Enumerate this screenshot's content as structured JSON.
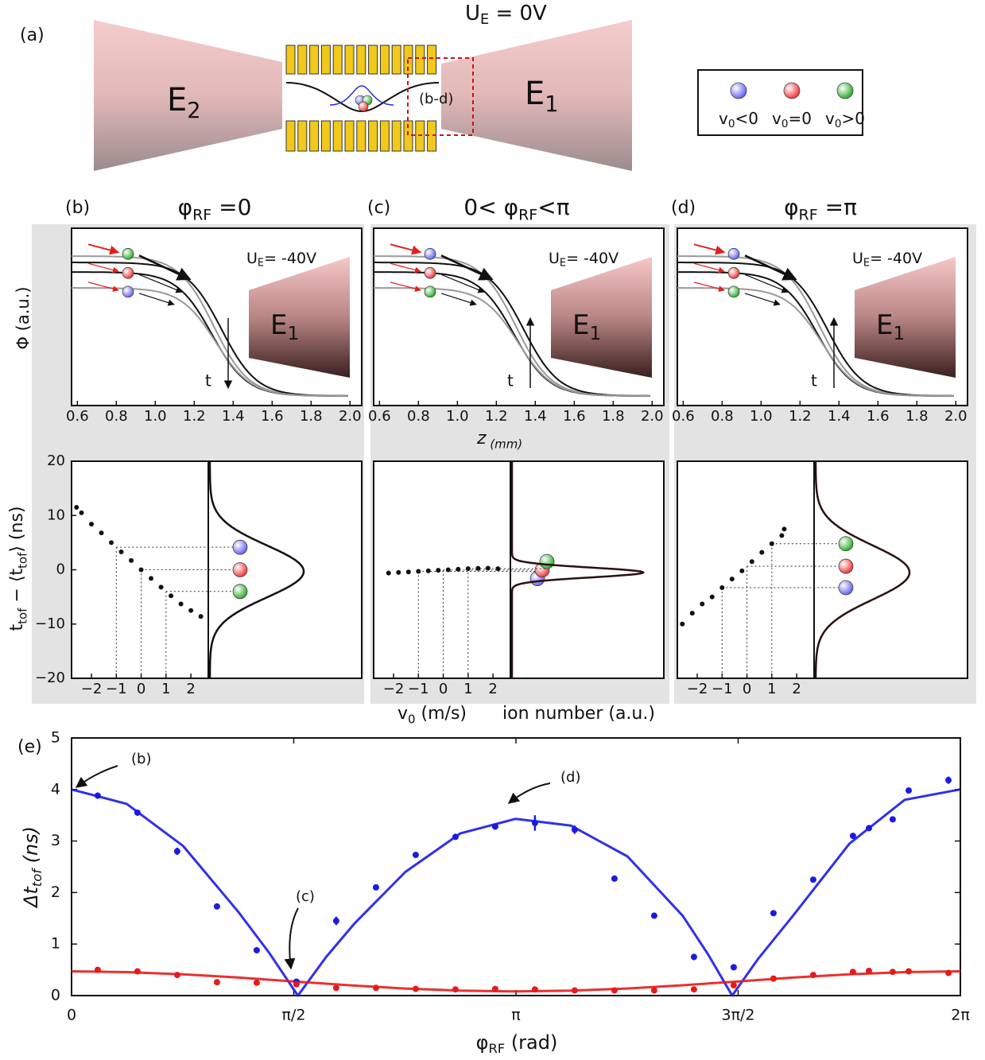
{
  "panel_a": {
    "label": "(a)",
    "voltage": [
      "U",
      "E",
      " = 0V"
    ],
    "electrode_left": [
      "E",
      "2"
    ],
    "electrode_right": [
      "E",
      "1"
    ],
    "zoom_label": "(b-d)",
    "legend": [
      [
        "v",
        "0",
        "<0"
      ],
      [
        "v",
        "0",
        "=0"
      ],
      [
        "v",
        "0",
        ">0"
      ]
    ]
  },
  "shared_labels": {
    "potential_ylabel": "Φ  (a.u.)",
    "z_xlabel": [
      "z",
      "  (mm)"
    ],
    "tof_ylabel": [
      "t",
      "tof",
      " − ⟨t",
      "tof",
      "⟩  (ns)"
    ],
    "v0_xlabel": [
      "v",
      "0",
      "  (m/s)"
    ],
    "ion_xlabel": "ion number (a.u.)"
  },
  "chart_data": [
    {
      "type": "scatter",
      "label": "(b)",
      "title": [
        "φ",
        "RF",
        " =0"
      ],
      "potential": {
        "annotation": [
          "U",
          "E",
          "= -40V"
        ],
        "electrode": [
          "E",
          "1"
        ],
        "time_label": "t",
        "xlim": [
          0.57,
          2.06
        ],
        "xticks": [
          0.6,
          0.8,
          {
            "value": 1,
            "label": "1.0"
          },
          1.2,
          1.4,
          1.6,
          1.8,
          {
            "value": 2,
            "label": "2.0"
          }
        ]
      },
      "x": [
        -2.6,
        -2.4,
        -2.0,
        -1.6,
        -1.2,
        -0.8,
        -0.4,
        0,
        0.4,
        0.8,
        1.2,
        1.6,
        2.0,
        2.4
      ],
      "values": [
        11.5,
        10.5,
        8.4,
        6.8,
        5.0,
        3.3,
        1.7,
        0,
        -1.6,
        -3.2,
        -4.8,
        -6.3,
        -7.5,
        -8.6
      ],
      "xlim": [
        -2.8,
        2.7
      ],
      "ylim": [
        -20,
        20
      ],
      "xticks": [
        {
          "value": -2,
          "label": "−2"
        },
        {
          "value": -1,
          "label": "−1"
        },
        0,
        1,
        2
      ],
      "yticks": [
        {
          "value": -20,
          "label": "−20"
        },
        {
          "value": -10,
          "label": "−10"
        },
        0,
        10,
        20
      ],
      "color": "#111111"
    },
    {
      "type": "scatter",
      "label": "(c)",
      "title": [
        "0< φ",
        "RF",
        "<π"
      ],
      "potential": {
        "annotation": [
          "U",
          "E",
          "= -40V"
        ],
        "electrode": [
          "E",
          "1"
        ],
        "time_label": "t",
        "xlim": [
          0.57,
          2.06
        ],
        "xticks": [
          0.6,
          0.8,
          {
            "value": 1,
            "label": "1.0"
          },
          1.2,
          1.4,
          1.6,
          1.8,
          {
            "value": 2,
            "label": "2.0"
          }
        ]
      },
      "x": [
        -2.2,
        -1.8,
        -1.4,
        -1.0,
        -0.6,
        -0.2,
        0.2,
        0.6,
        1.0,
        1.4,
        1.8,
        2.2
      ],
      "values": [
        -0.6,
        -0.5,
        -0.4,
        -0.3,
        -0.2,
        -0.1,
        0,
        0.1,
        0.2,
        0.25,
        0.3,
        0.2
      ],
      "xlim": [
        -2.8,
        2.7
      ],
      "ylim": [
        -20,
        20
      ],
      "xticks": [
        {
          "value": -2,
          "label": "−2"
        },
        {
          "value": -1,
          "label": "−1"
        },
        0,
        1,
        2
      ],
      "color": "#111111"
    },
    {
      "type": "scatter",
      "label": "(d)",
      "title": [
        "φ",
        "RF",
        " =π"
      ],
      "potential": {
        "annotation": [
          "U",
          "E",
          "= -40V"
        ],
        "electrode": [
          "E",
          "1"
        ],
        "time_label": "t",
        "xlim": [
          0.57,
          2.06
        ],
        "xticks": [
          0.6,
          0.8,
          {
            "value": 1,
            "label": "1.0"
          },
          1.2,
          1.4,
          1.6,
          1.8,
          {
            "value": 2,
            "label": "2.0"
          }
        ]
      },
      "x": [
        -2.6,
        -2.2,
        -1.8,
        -1.4,
        -1.0,
        -0.6,
        -0.2,
        0.2,
        0.6,
        1.0,
        1.4,
        1.5
      ],
      "values": [
        -10,
        -8,
        -6.3,
        -5,
        -3.3,
        -1.7,
        -0.2,
        1.5,
        3.2,
        4.8,
        6.3,
        7.5
      ],
      "xlim": [
        -2.8,
        2.7
      ],
      "ylim": [
        -20,
        20
      ],
      "xticks": [
        {
          "value": -2,
          "label": "−2"
        },
        {
          "value": -1,
          "label": "−1"
        },
        0,
        1,
        2
      ],
      "color": "#111111"
    },
    {
      "type": "line",
      "label": "(e)",
      "xlim": [
        0,
        6.2832
      ],
      "ylim": [
        0,
        5
      ],
      "xticks": [
        0,
        {
          "value": 1.5708,
          "label": "π/2"
        },
        {
          "value": 3.1416,
          "label": "π"
        },
        {
          "value": 4.7124,
          "label": "3π/2"
        },
        {
          "value": 6.2832,
          "label": "2π"
        }
      ],
      "yticks": [
        0,
        1,
        2,
        3,
        4,
        5
      ],
      "xlabel": [
        "φ",
        "RF",
        "  (rad)"
      ],
      "ylabel": [
        "Δt",
        "tof",
        "  (ns)"
      ],
      "annotations": [
        "(b)",
        "(c)",
        "(d)"
      ],
      "series": [
        {
          "color": "#1a1ae6",
          "x": [
            0.185,
            0.466,
            0.747,
            1.028,
            1.309,
            1.59,
            1.871,
            2.152,
            2.433,
            2.714,
            2.995,
            3.276,
            3.557,
            3.838,
            4.119,
            4.4,
            4.681,
            4.962,
            5.243,
            5.524,
            5.637,
            5.805,
            5.918,
            6.199
          ],
          "values": [
            3.88,
            3.55,
            2.8,
            1.73,
            0.88,
            0.27,
            1.45,
            2.1,
            2.73,
            3.08,
            3.28,
            3.35,
            3.22,
            2.27,
            1.55,
            0.75,
            0.55,
            1.6,
            2.25,
            3.1,
            3.25,
            3.42,
            3.98,
            4.18
          ],
          "errors": [
            0.06,
            0.04,
            0.07,
            0.04,
            0.04,
            0.04,
            0.08,
            0.05,
            0.04,
            0.04,
            0.06,
            0.15,
            0.08,
            0.04,
            0.04,
            0.06,
            0.04,
            0.04,
            0.05,
            0.04,
            0.04,
            0.04,
            0.04,
            0.07
          ]
        },
        {
          "color": "#e61a1a",
          "x": [
            0.185,
            0.466,
            0.747,
            1.028,
            1.309,
            1.59,
            1.871,
            2.152,
            2.433,
            2.714,
            2.995,
            3.276,
            3.557,
            3.838,
            4.119,
            4.4,
            4.681,
            4.962,
            5.243,
            5.524,
            5.637,
            5.805,
            5.918,
            6.199
          ],
          "values": [
            0.5,
            0.47,
            0.4,
            0.26,
            0.25,
            0.22,
            0.15,
            0.15,
            0.13,
            0.12,
            0.13,
            0.12,
            0.1,
            0.1,
            0.1,
            0.12,
            0.2,
            0.33,
            0.4,
            0.46,
            0.48,
            0.46,
            0.47,
            0.44
          ]
        }
      ],
      "fits": [
        {
          "color": "#1a1ae6",
          "x": [
            0,
            0.39,
            0.79,
            1.18,
            1.4,
            1.6,
            1.8,
            2.0,
            2.36,
            2.75,
            3.14,
            3.53,
            3.93,
            4.32,
            4.5,
            4.67,
            4.85,
            5.1,
            5.5,
            5.89,
            6.28
          ],
          "values": [
            4.0,
            3.72,
            2.9,
            1.62,
            0.82,
            0,
            0.75,
            1.4,
            2.4,
            3.15,
            3.43,
            3.3,
            2.7,
            1.55,
            0.8,
            0,
            0.7,
            1.55,
            2.95,
            3.8,
            4.0
          ]
        },
        {
          "color": "#e61a1a",
          "x": [
            0,
            0.393,
            0.785,
            1.178,
            1.571,
            1.963,
            2.356,
            2.749,
            3.142,
            3.534,
            3.927,
            4.32,
            4.712,
            5.105,
            5.498,
            5.89,
            6.283
          ],
          "values": [
            0.47,
            0.455,
            0.413,
            0.35,
            0.275,
            0.2,
            0.137,
            0.095,
            0.08,
            0.095,
            0.137,
            0.2,
            0.275,
            0.35,
            0.413,
            0.455,
            0.47
          ]
        }
      ]
    }
  ]
}
